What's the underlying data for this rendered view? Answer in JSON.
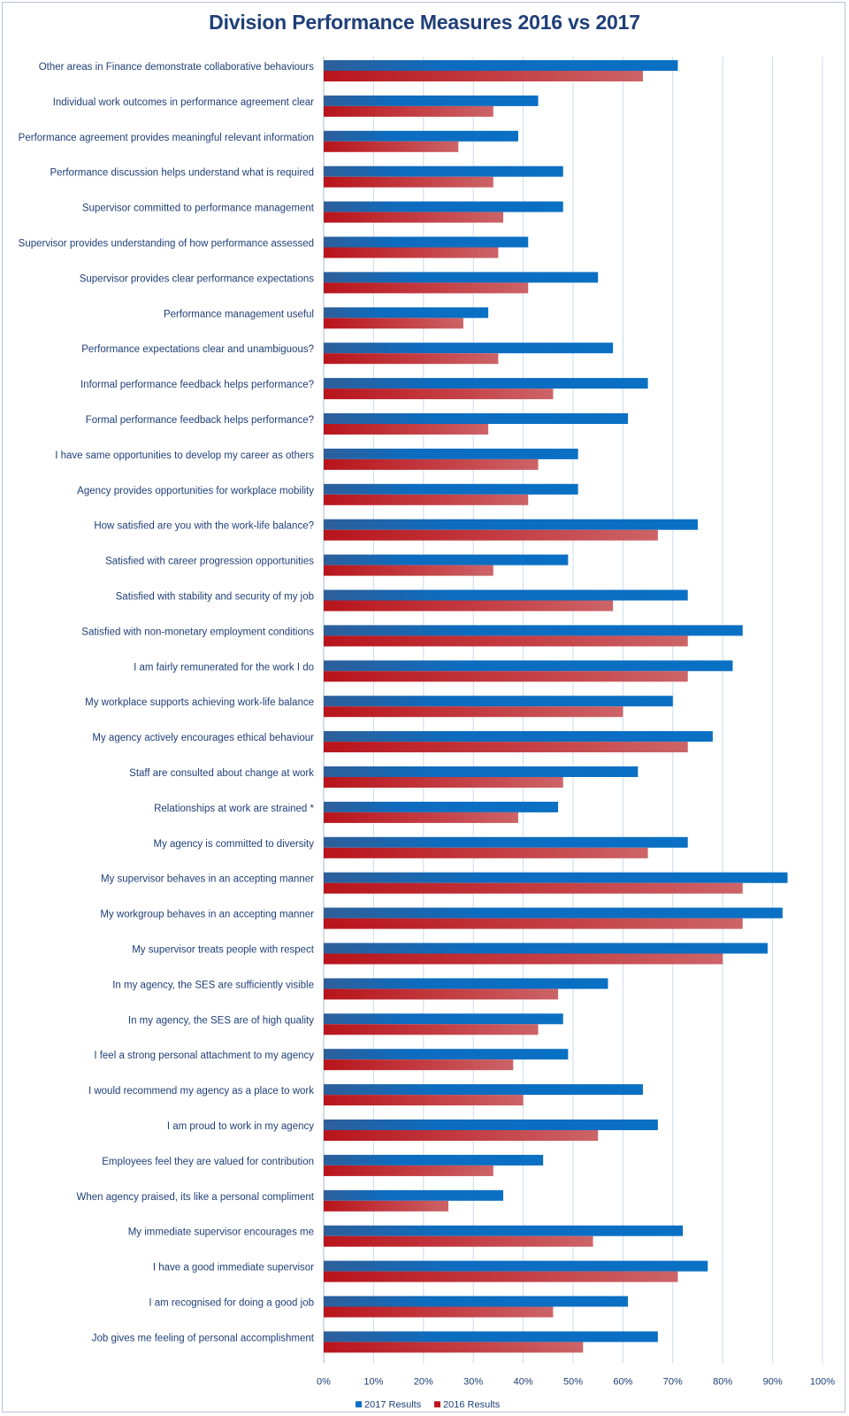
{
  "chart_data": {
    "type": "bar",
    "orientation": "horizontal",
    "title": "Division Performance Measures 2016 vs 2017",
    "xlabel": "",
    "ylabel": "",
    "xlim": [
      0,
      100
    ],
    "x_tick_labels": [
      "0%",
      "10%",
      "20%",
      "30%",
      "40%",
      "50%",
      "60%",
      "70%",
      "80%",
      "90%",
      "100%"
    ],
    "grid": true,
    "legend_position": "bottom",
    "colors": {
      "2017 Results": "#0a6fc2",
      "2016 Results": "#c0141c"
    },
    "categories": [
      "Other areas in Finance demonstrate collaborative behaviours",
      "Individual work outcomes in performance agreement clear",
      "Performance agreement provides meaningful relevant information",
      "Performance discussion helps understand what is required",
      "Supervisor committed to performance management",
      "Supervisor provides understanding of how performance assessed",
      "Supervisor provides clear performance expectations",
      "Performance management useful",
      "Performance expectations clear and unambiguous?",
      "Informal performance feedback helps performance?",
      "Formal performance feedback helps performance?",
      "I have same opportunities to develop my career as others",
      "Agency provides opportunities for workplace mobility",
      "How satisfied are you with the work-life balance?",
      "Satisfied with career progression opportunities",
      "Satisfied with stability and security of my job",
      "Satisfied with non-monetary employment conditions",
      "I am fairly remunerated for the work I do",
      "My workplace supports achieving work-life balance",
      "My agency actively encourages ethical behaviour",
      "Staff are consulted about change at work",
      "Relationships at work are strained *",
      "My agency is committed to diversity",
      "My supervisor behaves in an accepting manner",
      "My workgroup behaves in an accepting manner",
      "My supervisor treats people with respect",
      "In my agency, the SES are sufficiently visible",
      "In my agency, the SES are of high quality",
      "I feel a strong personal attachment to my agency",
      "I would recommend my agency as a place to work",
      "I am proud to work in my agency",
      "Employees feel they are valued for contribution",
      "When agency praised, its like a personal compliment",
      "My immediate supervisor encourages me",
      "I have a good immediate supervisor",
      "I am recognised for doing a good job",
      "Job gives me feeling of personal accomplishment"
    ],
    "series": [
      {
        "name": "2017 Results",
        "values": [
          71,
          43,
          39,
          48,
          48,
          41,
          55,
          33,
          58,
          65,
          61,
          51,
          51,
          75,
          49,
          73,
          84,
          82,
          70,
          78,
          63,
          47,
          73,
          93,
          92,
          89,
          57,
          48,
          49,
          64,
          67,
          44,
          36,
          72,
          77,
          61,
          67
        ]
      },
      {
        "name": "2016 Results",
        "values": [
          64,
          34,
          27,
          34,
          36,
          35,
          41,
          28,
          35,
          46,
          33,
          43,
          41,
          67,
          34,
          58,
          73,
          73,
          60,
          73,
          48,
          39,
          65,
          84,
          84,
          80,
          47,
          43,
          38,
          40,
          55,
          34,
          25,
          54,
          71,
          46,
          52
        ]
      }
    ]
  }
}
